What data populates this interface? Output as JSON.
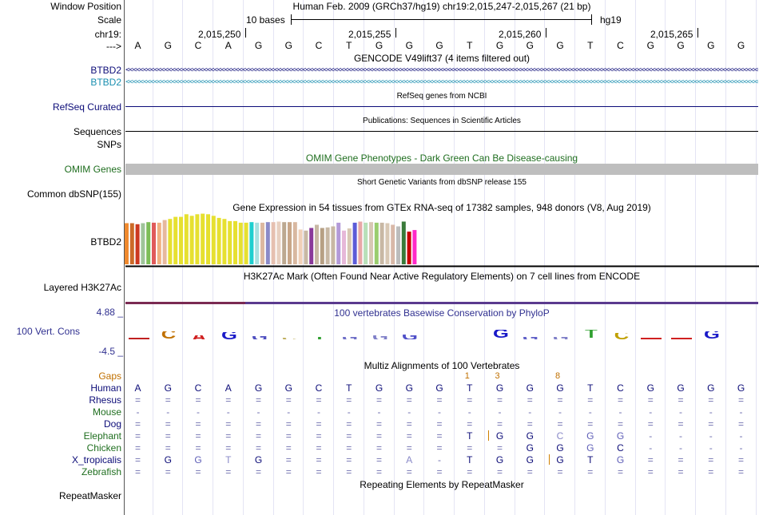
{
  "header": {
    "window_position_label": "Window Position",
    "window_position_value": "Human Feb. 2009 (GRCh37/hg19)   chr19:2,015,247-2,015,267 (21 bp)",
    "scale_label": "Scale",
    "scale_value": "10 bases",
    "assembly": "hg19",
    "chrom_label": "chr19:",
    "strand_label": "--->",
    "coordinates": [
      "2,015,250",
      "2,015,255",
      "2,015,260",
      "2,015,265"
    ]
  },
  "bases": [
    "A",
    "G",
    "C",
    "A",
    "G",
    "G",
    "C",
    "T",
    "G",
    "G",
    "G",
    "T",
    "G",
    "G",
    "G",
    "T",
    "C",
    "G",
    "G",
    "G",
    "G"
  ],
  "gencode": {
    "title": "GENCODE V49lift37 (4 items filtered out)",
    "gene1": "BTBD2",
    "gene2": "BTBD2",
    "gene1_color": "#0c0c78",
    "gene2_color": "#1a8fb0"
  },
  "refseq": {
    "label": "RefSeq Curated",
    "title": "RefSeq genes from NCBI"
  },
  "publications": {
    "label": "Sequences",
    "title": "Publications: Sequences in Scientific Articles"
  },
  "snps": {
    "label": "SNPs"
  },
  "omim": {
    "label": "OMIM Genes",
    "title": "OMIM Gene Phenotypes - Dark Green Can Be Disease-causing",
    "color": "#1f6e1f"
  },
  "dbsnp": {
    "label": "Common dbSNP(155)",
    "title": "Short Genetic Variants from dbSNP release 155"
  },
  "gtex": {
    "label": "BTBD2",
    "title": "Gene Expression in 54 tissues from GTEx RNA-seq of 17382 samples, 948 donors (V8, Aug 2019)",
    "values": [
      0.78,
      0.78,
      0.76,
      0.78,
      0.8,
      0.79,
      0.79,
      0.84,
      0.86,
      0.9,
      0.9,
      0.95,
      0.92,
      0.95,
      0.96,
      0.95,
      0.92,
      0.88,
      0.86,
      0.82,
      0.82,
      0.79,
      0.79,
      0.8,
      0.79,
      0.79,
      0.8,
      0.8,
      0.81,
      0.8,
      0.8,
      0.8,
      0.66,
      0.64,
      0.69,
      0.75,
      0.69,
      0.7,
      0.72,
      0.79,
      0.64,
      0.68,
      0.79,
      0.81,
      0.79,
      0.8,
      0.79,
      0.79,
      0.78,
      0.75,
      0.72,
      0.81,
      0.62,
      0.65
    ],
    "colors": [
      "#f08a2e",
      "#cc6a28",
      "#cc3820",
      "#9fc49a",
      "#7dbd58",
      "#e05a5a",
      "#f0b080",
      "#e6b89e",
      "#e6e030",
      "#e6e030",
      "#e6e030",
      "#e6e030",
      "#e6e030",
      "#e6e030",
      "#e6e030",
      "#e6e030",
      "#e6e030",
      "#e6e030",
      "#e6e030",
      "#e6e030",
      "#e6e030",
      "#e6e030",
      "#e6e030",
      "#1fcfcf",
      "#a6e0e0",
      "#dcb8a0",
      "#8a8ac8",
      "#e6c0b0",
      "#e8d0c0",
      "#bca890",
      "#c8a688",
      "#d8b8a0",
      "#f0d0b8",
      "#c8b8a4",
      "#8a3a9a",
      "#c8b8a4",
      "#b7a084",
      "#c8b8a4",
      "#c8b8a4",
      "#b39ad8",
      "#e6b8d8",
      "#d8c8b4",
      "#5c5cd8",
      "#e8a8a8",
      "#b8e0b8",
      "#d8c8b4",
      "#9acd6e",
      "#c8b8a4",
      "#d8c8b4",
      "#d8b8a8",
      "#bcbcbc",
      "#3a7a3a",
      "#c80000",
      "#ff2ac8"
    ]
  },
  "h3k27ac": {
    "label": "Layered H3K27Ac",
    "title": "H3K27Ac Mark (Often Found Near Active Regulatory Elements) on 7 cell lines from ENCODE"
  },
  "phylop": {
    "label": "100 Vert. Cons",
    "title": "100 vertebrates Basewise Conservation by PhyloP",
    "max": "4.88 _",
    "min": "-4.5 _",
    "color": "#303090",
    "logo": [
      {
        "t": "",
        "c": "#c02020",
        "h": 3,
        "neg": false
      },
      {
        "t": "C",
        "c": "#c07000",
        "h": 10,
        "neg": false
      },
      {
        "t": "A",
        "c": "#d02020",
        "h": 5,
        "neg": false
      },
      {
        "t": "G",
        "c": "#1a1ac8",
        "h": 9,
        "neg": false
      },
      {
        "t": "G",
        "c": "#5050c0",
        "h": 4,
        "neg": false
      },
      {
        "t": "C",
        "c": "#c0b060",
        "h": 2,
        "neg": false
      },
      {
        "t": "T",
        "c": "#30a030",
        "h": 3,
        "neg": false
      },
      {
        "t": "G",
        "c": "#7070c8",
        "h": 3,
        "neg": false
      },
      {
        "t": "G",
        "c": "#8080c8",
        "h": 5,
        "neg": false
      },
      {
        "t": "G",
        "c": "#5050c8",
        "h": 6,
        "neg": false
      },
      {
        "t": "",
        "c": "#ffffff",
        "h": 0,
        "neg": false
      },
      {
        "t": "",
        "c": "#ffffff",
        "h": 0,
        "neg": false
      },
      {
        "t": "G",
        "c": "#1a1ac8",
        "h": 12,
        "neg": false
      },
      {
        "t": "G",
        "c": "#6060c8",
        "h": 3,
        "neg": false
      },
      {
        "t": "G",
        "c": "#8080c8",
        "h": 3,
        "neg": false
      },
      {
        "t": "T",
        "c": "#30a030",
        "h": 12,
        "neg": false
      },
      {
        "t": "C",
        "c": "#c0a000",
        "h": 8,
        "neg": false
      },
      {
        "t": "",
        "c": "#d02020",
        "h": 2,
        "neg": false
      },
      {
        "t": "",
        "c": "#d02020",
        "h": 2,
        "neg": false
      },
      {
        "t": "G",
        "c": "#1a1ac8",
        "h": 10,
        "neg": false
      }
    ]
  },
  "multiz": {
    "title": "Multiz Alignments of 100 Vertebrates",
    "gaps_label": "Gaps",
    "gap_markers": [
      {
        "col": 11,
        "text": "1"
      },
      {
        "col": 12,
        "text": "3"
      },
      {
        "col": 14,
        "text": "8"
      }
    ],
    "species": [
      {
        "name": "Human",
        "color": "#0c0c78",
        "row": [
          "A",
          "G",
          "C",
          "A",
          "G",
          "G",
          "C",
          "T",
          "G",
          "G",
          "G",
          "T",
          "G",
          "G",
          "G",
          "T",
          "C",
          "G",
          "G",
          "G",
          "G"
        ]
      },
      {
        "name": "Rhesus",
        "color": "#0c0c78",
        "row": [
          "=",
          "=",
          "=",
          "=",
          "=",
          "=",
          "=",
          "=",
          "=",
          "=",
          "=",
          "=",
          "=",
          "=",
          "=",
          "=",
          "=",
          "=",
          "=",
          "=",
          "="
        ]
      },
      {
        "name": "Mouse",
        "color": "#1f6e1f",
        "row": [
          "-",
          "-",
          "-",
          "-",
          "-",
          "-",
          "-",
          "-",
          "-",
          "-",
          "-",
          "-",
          "-",
          "-",
          "-",
          "-",
          "-",
          "-",
          "-",
          "-",
          "-"
        ]
      },
      {
        "name": "Dog",
        "color": "#0c0c78",
        "row": [
          "=",
          "=",
          "=",
          "=",
          "=",
          "=",
          "=",
          "=",
          "=",
          "=",
          "=",
          "=",
          "=",
          "=",
          "=",
          "=",
          "=",
          "=",
          "=",
          "=",
          "="
        ]
      },
      {
        "name": "Elephant",
        "color": "#1f6e1f",
        "row": [
          "=",
          "=",
          "=",
          "=",
          "=",
          "=",
          "=",
          "=",
          "=",
          "=",
          "=",
          "T",
          "G",
          "G",
          "C",
          "G",
          "G",
          "-",
          "-",
          "-",
          "-"
        ]
      },
      {
        "name": "Chicken",
        "color": "#1f6e1f",
        "row": [
          "=",
          "=",
          "=",
          "=",
          "=",
          "=",
          "=",
          "=",
          "=",
          "=",
          "=",
          "=",
          "=",
          "G",
          "G",
          "G",
          "C",
          "-",
          "-",
          "-",
          "-"
        ]
      },
      {
        "name": "X_tropicalis",
        "color": "#0c0c78",
        "row": [
          "=",
          "G",
          "G",
          "T",
          "G",
          "=",
          "=",
          "=",
          "=",
          "A",
          "-",
          "T",
          "G",
          "G",
          "G",
          "T",
          "G",
          "=",
          "=",
          "=",
          "="
        ]
      },
      {
        "name": "Zebrafish",
        "color": "#1f6e1f",
        "row": [
          "=",
          "=",
          "=",
          "=",
          "=",
          "=",
          "=",
          "=",
          "=",
          "=",
          "=",
          "=",
          "=",
          "=",
          "=",
          "=",
          "=",
          "=",
          "=",
          "=",
          "="
        ]
      }
    ]
  },
  "repeatmasker": {
    "label": "RepeatMasker",
    "title": "Repeating Elements by RepeatMasker"
  }
}
